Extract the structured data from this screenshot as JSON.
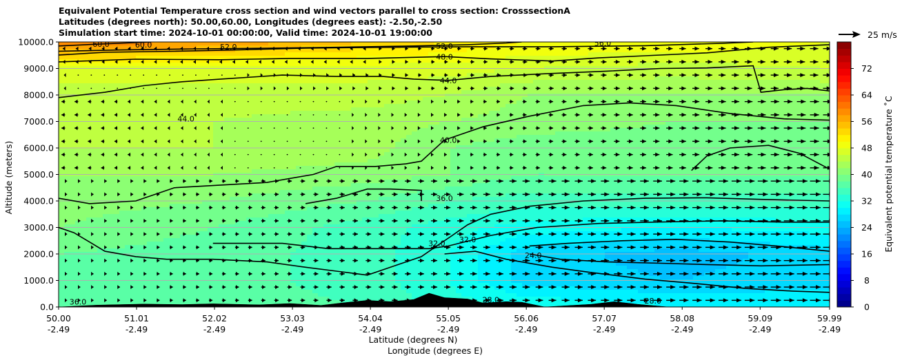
{
  "chart_data": {
    "type": "heatmap",
    "title": [
      "Equivalent Potential Temperature cross section and wind vectors parallel to cross section: CrosssectionA",
      "Latitudes (degrees north): 50.00,60.00, Longitudes (degrees east): -2.50,-2.50",
      "Simulation start time: 2024-10-01 00:00:00, Valid time: 2024-10-01 19:00:00"
    ],
    "xlabel": "Latitude (degrees N)",
    "xlabel2": "Longitude (degrees E)",
    "ylabel": "Altitude (meters)",
    "colorbar_label": "Equivalent potential temperature $^\\circ$C",
    "colorbar_label_text": "Equivalent potential temperature ˚C",
    "colorbar_range": [
      0,
      80
    ],
    "colorbar_ticks": [
      "0",
      "8",
      "16",
      "24",
      "32",
      "40",
      "48",
      "56",
      "64",
      "72"
    ],
    "colormap": "jet",
    "xlim": [
      50.0,
      59.99
    ],
    "ylim": [
      0,
      10000
    ],
    "x_ticks": [
      {
        "lat": "50.00",
        "lon": "-2.49",
        "value": 50.0
      },
      {
        "lat": "51.01",
        "lon": "-2.49",
        "value": 51.01
      },
      {
        "lat": "52.02",
        "lon": "-2.49",
        "value": 52.02
      },
      {
        "lat": "53.03",
        "lon": "-2.49",
        "value": 53.03
      },
      {
        "lat": "54.04",
        "lon": "-2.49",
        "value": 54.04
      },
      {
        "lat": "55.05",
        "lon": "-2.49",
        "value": 55.05
      },
      {
        "lat": "56.06",
        "lon": "-2.49",
        "value": 56.06
      },
      {
        "lat": "57.07",
        "lon": "-2.49",
        "value": 57.07
      },
      {
        "lat": "58.08",
        "lon": "-2.49",
        "value": 58.08
      },
      {
        "lat": "59.09",
        "lon": "-2.49",
        "value": 59.09
      },
      {
        "lat": "59.99",
        "lon": "-2.49",
        "value": 59.99
      }
    ],
    "y_ticks": [
      "0.0",
      "1000.0",
      "2000.0",
      "3000.0",
      "4000.0",
      "5000.0",
      "6000.0",
      "7000.0",
      "8000.0",
      "9000.0",
      "10000.0"
    ],
    "grid": "horizontal",
    "quiver_key": {
      "label": "25 m/s",
      "speed": 25
    },
    "contour_labels": [
      {
        "text": "60.0",
        "lat": 50.55,
        "alt": 9920
      },
      {
        "text": "60.0",
        "lat": 51.1,
        "alt": 9900
      },
      {
        "text": "52.0",
        "lat": 52.2,
        "alt": 9820
      },
      {
        "text": "52.0",
        "lat": 55.0,
        "alt": 9840
      },
      {
        "text": "56.0",
        "lat": 57.05,
        "alt": 9960
      },
      {
        "text": "48.0",
        "lat": 55.0,
        "alt": 9440
      },
      {
        "text": "44.0",
        "lat": 55.05,
        "alt": 8540
      },
      {
        "text": "44.0",
        "lat": 51.65,
        "alt": 7100
      },
      {
        "text": "40.0",
        "lat": 55.05,
        "alt": 6300
      },
      {
        "text": "36.0",
        "lat": 55.0,
        "alt": 4100
      },
      {
        "text": "32.0",
        "lat": 54.9,
        "alt": 2400
      },
      {
        "text": "32.0",
        "lat": 55.3,
        "alt": 2550
      },
      {
        "text": "24.0",
        "lat": 56.15,
        "alt": 1950
      },
      {
        "text": "36.0",
        "lat": 50.25,
        "alt": 200
      },
      {
        "text": "28.0",
        "lat": 55.6,
        "alt": 270
      },
      {
        "text": "28.0",
        "lat": 57.7,
        "alt": 230
      }
    ],
    "contours": [
      {
        "level": 60,
        "points": [
          [
            50.0,
            9650
          ],
          [
            50.8,
            9700
          ],
          [
            51.8,
            9740
          ],
          [
            52.6,
            9760
          ],
          [
            53.6,
            9800
          ],
          [
            54.6,
            9850
          ],
          [
            55.3,
            9900
          ],
          [
            55.8,
            9960
          ],
          [
            56.0,
            10000
          ]
        ]
      },
      {
        "level": 56,
        "points": [
          [
            50.0,
            9850
          ],
          [
            50.6,
            9930
          ],
          [
            51.2,
            10000
          ]
        ]
      },
      {
        "level": 52,
        "points": [
          [
            50.0,
            9510
          ],
          [
            50.6,
            9610
          ],
          [
            51.5,
            9650
          ],
          [
            52.3,
            9700
          ],
          [
            53.2,
            9770
          ],
          [
            54.2,
            9800
          ],
          [
            55.3,
            9820
          ],
          [
            56.4,
            9820
          ],
          [
            57.6,
            9860
          ],
          [
            58.6,
            9950
          ],
          [
            59.0,
            10000
          ]
        ]
      },
      {
        "level": 48,
        "points": [
          [
            50.0,
            9250
          ],
          [
            51.0,
            9350
          ],
          [
            52.1,
            9330
          ],
          [
            53.0,
            9380
          ],
          [
            54.0,
            9380
          ],
          [
            55.0,
            9450
          ],
          [
            55.6,
            9360
          ],
          [
            56.4,
            9280
          ],
          [
            57.0,
            9400
          ],
          [
            57.6,
            9480
          ],
          [
            58.4,
            9590
          ],
          [
            59.2,
            9800
          ],
          [
            59.99,
            9900
          ]
        ]
      },
      {
        "level": 44,
        "points": [
          [
            50.0,
            7900
          ],
          [
            50.6,
            8100
          ],
          [
            51.1,
            8350
          ],
          [
            51.6,
            8500
          ],
          [
            52.1,
            8600
          ],
          [
            52.9,
            8750
          ],
          [
            53.6,
            8700
          ],
          [
            54.2,
            8700
          ],
          [
            54.6,
            8600
          ],
          [
            55.05,
            8550
          ],
          [
            55.6,
            8700
          ],
          [
            56.3,
            8800
          ],
          [
            57.1,
            8900
          ],
          [
            57.8,
            9000
          ],
          [
            58.4,
            9020
          ],
          [
            59.0,
            9100
          ],
          [
            59.1,
            8100
          ],
          [
            59.4,
            8200
          ],
          [
            59.7,
            8250
          ],
          [
            59.99,
            8150
          ]
        ]
      },
      {
        "level": 40,
        "points": [
          [
            50.0,
            4100
          ],
          [
            50.4,
            3900
          ],
          [
            51.0,
            4000
          ],
          [
            51.5,
            4500
          ],
          [
            52.1,
            4600
          ],
          [
            52.7,
            4700
          ],
          [
            53.3,
            5000
          ],
          [
            53.6,
            5300
          ],
          [
            54.1,
            5300
          ],
          [
            54.5,
            5400
          ],
          [
            54.7,
            5500
          ],
          [
            55.0,
            6300
          ],
          [
            55.5,
            6800
          ],
          [
            56.1,
            7200
          ],
          [
            56.8,
            7600
          ],
          [
            57.4,
            7700
          ],
          [
            58.0,
            7600
          ],
          [
            58.7,
            7300
          ],
          [
            59.4,
            7100
          ],
          [
            59.99,
            7050
          ]
        ]
      },
      {
        "level": 40,
        "points": [
          [
            58.2,
            5150
          ],
          [
            58.4,
            5700
          ],
          [
            58.7,
            6000
          ],
          [
            59.2,
            6100
          ],
          [
            59.6,
            5800
          ],
          [
            59.99,
            5200
          ]
        ]
      },
      {
        "level": 36,
        "points": [
          [
            50.0,
            3000
          ],
          [
            50.2,
            2800
          ],
          [
            50.6,
            2100
          ],
          [
            51.0,
            1900
          ],
          [
            51.4,
            1800
          ],
          [
            52.0,
            1800
          ],
          [
            52.7,
            1700
          ],
          [
            53.2,
            1500
          ],
          [
            53.6,
            1350
          ],
          [
            54.0,
            1200
          ],
          [
            54.3,
            1500
          ],
          [
            54.7,
            1900
          ],
          [
            54.9,
            2300
          ],
          [
            55.1,
            2700
          ],
          [
            55.3,
            3100
          ],
          [
            55.6,
            3500
          ],
          [
            56.1,
            3800
          ],
          [
            56.8,
            4000
          ],
          [
            57.6,
            4100
          ],
          [
            58.4,
            4120
          ],
          [
            59.1,
            4060
          ],
          [
            59.99,
            4000
          ]
        ]
      },
      {
        "level": 36,
        "points": [
          [
            53.2,
            3900
          ],
          [
            53.6,
            4100
          ],
          [
            54.0,
            4450
          ],
          [
            54.3,
            4450
          ],
          [
            54.7,
            4400
          ],
          [
            54.7,
            4000
          ]
        ]
      },
      {
        "level": 32,
        "points": [
          [
            52.0,
            2400
          ],
          [
            52.9,
            2400
          ],
          [
            53.5,
            2200
          ],
          [
            53.9,
            2200
          ],
          [
            54.4,
            2200
          ],
          [
            54.8,
            2200
          ],
          [
            55.05,
            2300
          ],
          [
            55.6,
            2700
          ],
          [
            56.2,
            3000
          ],
          [
            57.0,
            3150
          ],
          [
            57.7,
            3200
          ],
          [
            58.6,
            3250
          ],
          [
            59.4,
            3200
          ],
          [
            59.99,
            3200
          ]
        ]
      },
      {
        "level": 28,
        "points": [
          [
            55.0,
            2000
          ],
          [
            55.4,
            2100
          ],
          [
            55.8,
            1800
          ],
          [
            56.4,
            1500
          ],
          [
            56.9,
            1300
          ],
          [
            57.6,
            1050
          ],
          [
            58.2,
            900
          ],
          [
            58.9,
            700
          ],
          [
            59.5,
            600
          ],
          [
            59.99,
            550
          ]
        ]
      },
      {
        "level": 24,
        "points": [
          [
            56.1,
            2300
          ],
          [
            56.6,
            2400
          ],
          [
            57.3,
            2500
          ],
          [
            58.0,
            2550
          ],
          [
            58.7,
            2450
          ],
          [
            59.3,
            2300
          ],
          [
            59.99,
            2100
          ]
        ]
      },
      {
        "level": 24,
        "points": [
          [
            56.1,
            2000
          ],
          [
            56.5,
            1800
          ],
          [
            57.1,
            1700
          ],
          [
            57.8,
            1650
          ],
          [
            58.4,
            1600
          ],
          [
            59.1,
            1550
          ],
          [
            59.99,
            1600
          ]
        ]
      }
    ],
    "terrain_profile": [
      {
        "lat": 50.0,
        "alt": 0
      },
      {
        "lat": 50.5,
        "alt": 70
      },
      {
        "lat": 51.1,
        "alt": 110
      },
      {
        "lat": 51.6,
        "alt": 90
      },
      {
        "lat": 52.0,
        "alt": 120
      },
      {
        "lat": 52.6,
        "alt": 80
      },
      {
        "lat": 53.0,
        "alt": 130
      },
      {
        "lat": 53.4,
        "alt": 60
      },
      {
        "lat": 53.7,
        "alt": 160
      },
      {
        "lat": 54.0,
        "alt": 250
      },
      {
        "lat": 54.3,
        "alt": 200
      },
      {
        "lat": 54.6,
        "alt": 280
      },
      {
        "lat": 54.8,
        "alt": 520
      },
      {
        "lat": 55.0,
        "alt": 350
      },
      {
        "lat": 55.3,
        "alt": 300
      },
      {
        "lat": 55.5,
        "alt": 150
      },
      {
        "lat": 55.8,
        "alt": 200
      },
      {
        "lat": 56.0,
        "alt": 180
      },
      {
        "lat": 56.3,
        "alt": 0
      },
      {
        "lat": 56.9,
        "alt": 100
      },
      {
        "lat": 57.2,
        "alt": 200
      },
      {
        "lat": 57.5,
        "alt": 100
      },
      {
        "lat": 57.9,
        "alt": 0
      },
      {
        "lat": 59.99,
        "alt": 0
      }
    ],
    "theta_e_field": {
      "description_levels_c": "approximate equivalent potential temperature by altitude and latitude",
      "columns_lat": [
        50.0,
        52.0,
        54.0,
        55.05,
        56.06,
        58.0,
        59.99
      ],
      "rows_alt": [
        0,
        1000,
        2000,
        3000,
        4000,
        5000,
        6000,
        7000,
        8000,
        9000,
        10000
      ],
      "values": [
        [
          38,
          37,
          36,
          33,
          32,
          30,
          30
        ],
        [
          37,
          37,
          35,
          32,
          27,
          26,
          27
        ],
        [
          38,
          37,
          35,
          32,
          27,
          25,
          27
        ],
        [
          40,
          38,
          35,
          33,
          31,
          30,
          31
        ],
        [
          41,
          40,
          38,
          36,
          35,
          35,
          35
        ],
        [
          42,
          42,
          41,
          40,
          38,
          38,
          38
        ],
        [
          44,
          44,
          43,
          40,
          39,
          39,
          40
        ],
        [
          44,
          44,
          43,
          42,
          41,
          40,
          40
        ],
        [
          45,
          45,
          45,
          44,
          42,
          42,
          42
        ],
        [
          47,
          47,
          47,
          47,
          46,
          45,
          46
        ],
        [
          60,
          58,
          54,
          52,
          50,
          50,
          48
        ]
      ]
    }
  }
}
